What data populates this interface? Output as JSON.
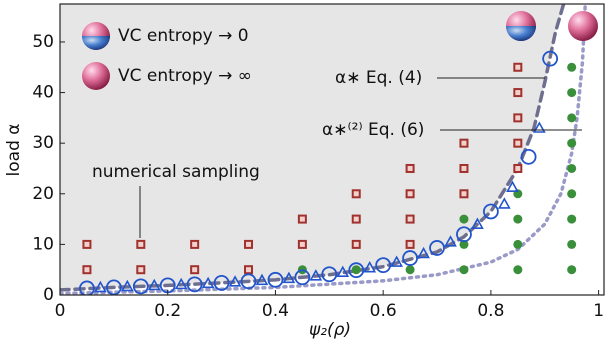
{
  "chart_data": {
    "type": "scatter",
    "xlabel": "ψ₂(ρ)",
    "ylabel": "load α",
    "xlim": [
      0,
      1.01
    ],
    "ylim": [
      0,
      57.5
    ],
    "xticks": [
      0,
      0.2,
      0.4,
      0.6,
      0.8,
      1
    ],
    "yticks": [
      0,
      10,
      20,
      30,
      40,
      50
    ],
    "shade_color": "#e6e6e6",
    "legend": [
      "VC entropy → 0",
      "VC entropy → ∞"
    ],
    "annotation": "numerical sampling",
    "series": [
      {
        "name": "α∗ Eq. (4)",
        "style": "dashed",
        "color": "#6e6e8e",
        "x": [
          0,
          0.1,
          0.2,
          0.3,
          0.4,
          0.5,
          0.6,
          0.7,
          0.75,
          0.8,
          0.85,
          0.88,
          0.9,
          0.92,
          0.935
        ],
        "values": [
          1,
          1.5,
          1.9,
          2.4,
          3.0,
          4.0,
          5.6,
          8.5,
          11.5,
          16.5,
          25,
          33,
          42,
          52,
          57.5
        ]
      },
      {
        "name": "α∗⁽²⁾ Eq. (6)",
        "style": "dotted",
        "color": "#9a9ac8",
        "x": [
          0,
          0.2,
          0.4,
          0.6,
          0.7,
          0.8,
          0.85,
          0.9,
          0.93,
          0.95,
          0.96,
          0.97,
          0.975
        ],
        "values": [
          0.3,
          0.8,
          1.5,
          2.8,
          4,
          6.5,
          9,
          14,
          20,
          28,
          35,
          46,
          57
        ]
      },
      {
        "style": "square",
        "color": "#a0322e",
        "x": [
          0.05,
          0.05,
          0.15,
          0.15,
          0.25,
          0.25,
          0.35,
          0.35,
          0.45,
          0.45,
          0.55,
          0.55,
          0.55,
          0.65,
          0.65,
          0.65,
          0.65,
          0.75,
          0.75,
          0.75,
          0.85,
          0.85,
          0.85,
          0.85,
          0.85
        ],
        "values": [
          5,
          10,
          5,
          10,
          5,
          10,
          5,
          10,
          10,
          15,
          10,
          15,
          20,
          10,
          15,
          20,
          25,
          20,
          25,
          30,
          25,
          30,
          35,
          40,
          45
        ]
      },
      {
        "style": "dot",
        "color": "#3a8f3a",
        "x": [
          0.45,
          0.55,
          0.65,
          0.75,
          0.75,
          0.75,
          0.85,
          0.85,
          0.85,
          0.85,
          0.95,
          0.95,
          0.95,
          0.95,
          0.95,
          0.95,
          0.95,
          0.95,
          0.95
        ],
        "values": [
          5,
          5,
          5,
          5,
          10,
          15,
          5,
          10,
          15,
          20,
          5,
          10,
          15,
          20,
          25,
          30,
          35,
          40,
          45
        ]
      },
      {
        "style": "circle",
        "color": "#2255cc",
        "x": [
          0.05,
          0.1,
          0.15,
          0.2,
          0.25,
          0.3,
          0.35,
          0.4,
          0.45,
          0.5,
          0.55,
          0.6,
          0.65,
          0.7,
          0.75,
          0.8,
          0.87,
          0.91
        ],
        "values": [
          1.3,
          1.5,
          1.7,
          1.9,
          2.1,
          2.4,
          2.7,
          3.0,
          3.5,
          4.1,
          4.9,
          5.9,
          7.3,
          9.3,
          12,
          16.5,
          27.3,
          46.7
        ]
      },
      {
        "style": "triangle",
        "color": "#2255cc",
        "x": [
          0.075,
          0.125,
          0.175,
          0.225,
          0.275,
          0.325,
          0.375,
          0.425,
          0.475,
          0.525,
          0.575,
          0.625,
          0.675,
          0.725,
          0.775,
          0.825,
          0.84,
          0.89
        ],
        "values": [
          1.5,
          1.7,
          1.9,
          2.1,
          2.3,
          2.6,
          2.9,
          3.3,
          3.8,
          4.5,
          5.4,
          6.5,
          8.2,
          10.5,
          14,
          18,
          21.3,
          33
        ]
      }
    ]
  }
}
